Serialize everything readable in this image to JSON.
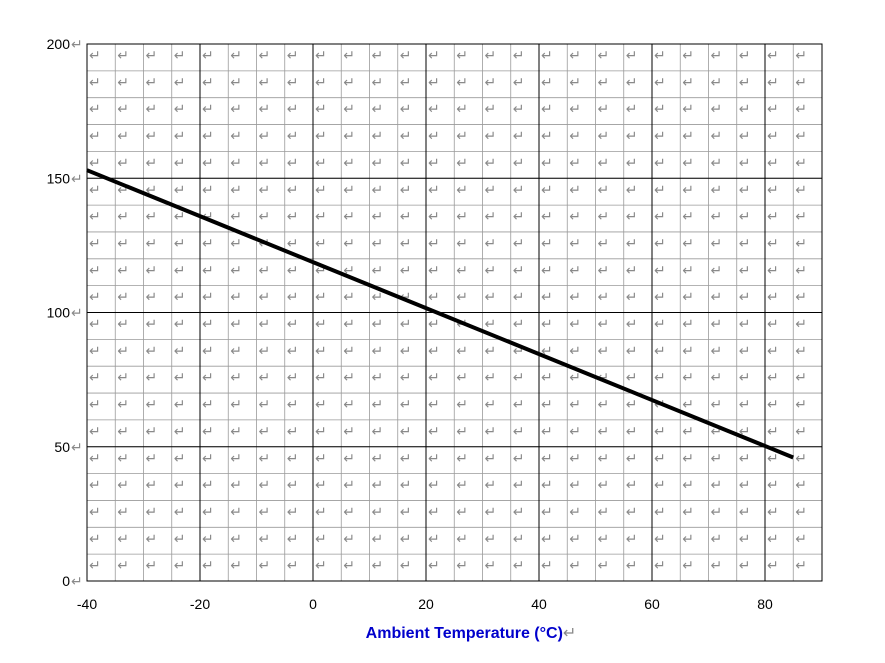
{
  "chart_data": {
    "type": "line",
    "title": "",
    "xlabel": "Ambient Temperature (°C)",
    "ylabel": "",
    "xlim": [
      -40,
      90
    ],
    "ylim": [
      0,
      200
    ],
    "x_ticks": [
      -40,
      -20,
      0,
      20,
      40,
      60,
      80
    ],
    "y_ticks": [
      0,
      50,
      100,
      150,
      200
    ],
    "minor_x_step": 5,
    "minor_y_step": 10,
    "grid": true,
    "series": [
      {
        "x": [
          -40,
          85
        ],
        "y": [
          153,
          46
        ]
      }
    ],
    "colors": {
      "line": "#000000",
      "major_grid": "#000000",
      "minor_grid": "#9a9a9a",
      "xlabel": "#0000cc",
      "cell_mark": "#8a8a8a"
    },
    "return_mark": "↵"
  }
}
